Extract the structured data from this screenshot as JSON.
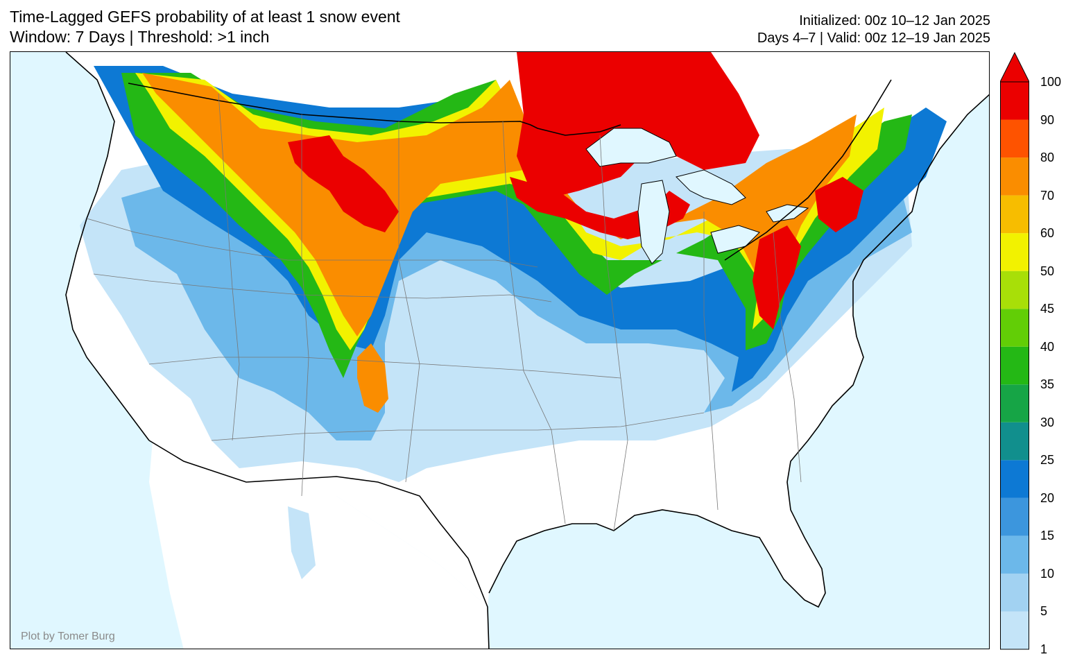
{
  "title": {
    "line1": "Time-Lagged GEFS probability of at least 1 snow event",
    "line2": "Window: 7 Days | Threshold: >1 inch"
  },
  "run_info": {
    "line1": "Initialized: 00z 10–12 Jan 2025",
    "line2": "Days 4–7 | Valid: 00z 12–19 Jan 2025"
  },
  "credit": "Plot by Tomer Burg",
  "colors": {
    "water": "#e0f7ff",
    "land": "#ffffff",
    "border": "#000000",
    "state_lines": "#777777"
  },
  "colorbar": {
    "levels": [
      1,
      5,
      10,
      15,
      20,
      25,
      30,
      35,
      40,
      45,
      50,
      60,
      70,
      80,
      90,
      100
    ],
    "tick_labels": [
      "1",
      "5",
      "10",
      "15",
      "20",
      "25",
      "30",
      "35",
      "40",
      "45",
      "50",
      "60",
      "70",
      "80",
      "90",
      "100"
    ],
    "colors": [
      "#c4e4f8",
      "#a2d2f2",
      "#6cb8ea",
      "#3c96dd",
      "#0d79d4",
      "#118f8d",
      "#16a546",
      "#24b815",
      "#62ce06",
      "#a8df08",
      "#f2f200",
      "#f7bd00",
      "#fa8d00",
      "#fe5300",
      "#eb0000"
    ],
    "extend": "max"
  }
}
